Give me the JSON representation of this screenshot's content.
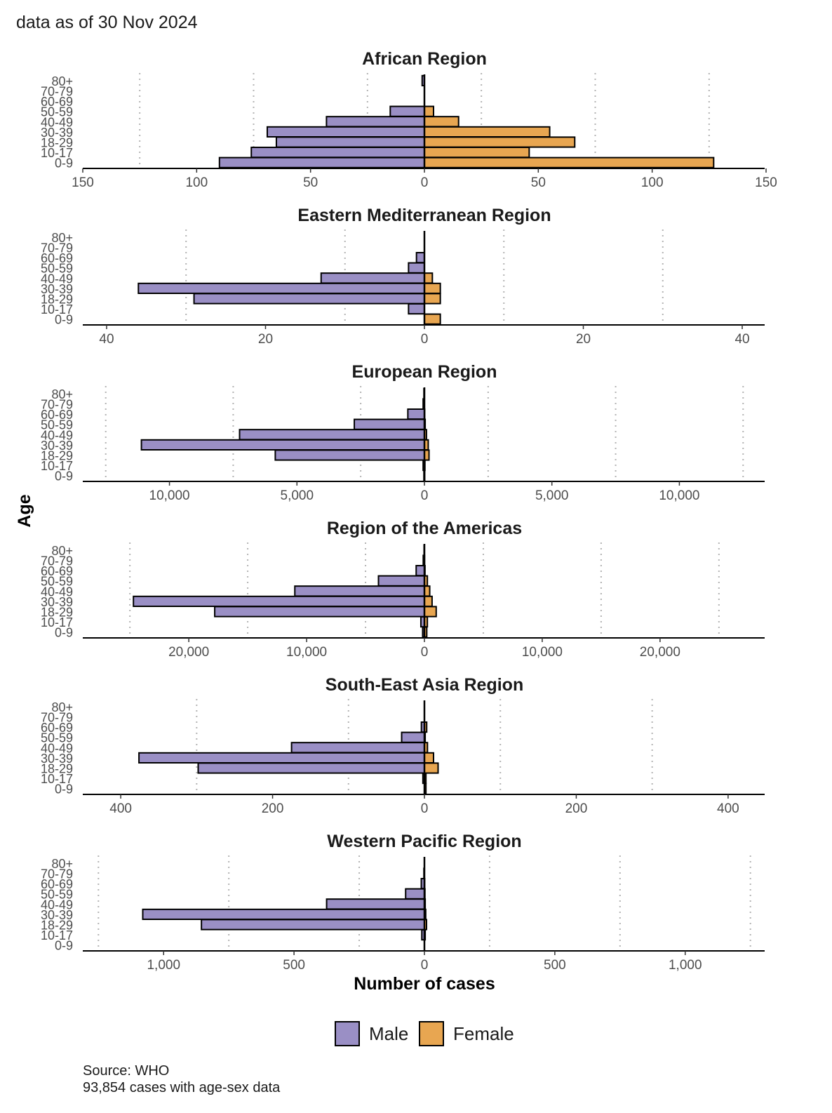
{
  "header": {
    "note": "data as of 30 Nov 2024"
  },
  "footer": {
    "source": "Source: WHO",
    "cases_note": "93,854 cases with age-sex data"
  },
  "colors": {
    "male": "#9a8fc5",
    "female": "#e8a651",
    "grid": "#b3b3b3",
    "axis": "#000000"
  },
  "chart_data": {
    "type": "bar",
    "orientation": "horizontal-population-pyramid",
    "xlabel": "Number of cases",
    "ylabel": "Age",
    "age_groups": [
      "0-9",
      "10-17",
      "18-29",
      "30-39",
      "40-49",
      "50-59",
      "60-69",
      "70-79",
      "80+"
    ],
    "legend": [
      {
        "key": "male",
        "label": "Male"
      },
      {
        "key": "female",
        "label": "Female"
      }
    ],
    "panels": [
      {
        "title": "African Region",
        "xlim": [
          -150,
          150
        ],
        "ticks": [
          -150,
          -100,
          -50,
          0,
          50,
          100,
          150
        ],
        "tick_labels": [
          "150",
          "100",
          "50",
          "0",
          "50",
          "100",
          "150"
        ],
        "grid": [
          -125,
          -75,
          -25,
          25,
          75,
          125
        ],
        "male": [
          90,
          76,
          65,
          69,
          43,
          15,
          0,
          0,
          1
        ],
        "female": [
          127,
          46,
          66,
          55,
          15,
          4,
          0,
          0,
          0
        ]
      },
      {
        "title": "Eastern Mediterranean Region",
        "xlim": [
          -43,
          43
        ],
        "ticks": [
          -40,
          -20,
          0,
          20,
          40
        ],
        "tick_labels": [
          "40",
          "20",
          "0",
          "20",
          "40"
        ],
        "grid": [
          -30,
          -10,
          10,
          30
        ],
        "male": [
          0,
          2,
          29,
          36,
          13,
          2,
          1,
          0,
          0
        ],
        "female": [
          2,
          0,
          2,
          2,
          1,
          0,
          0,
          0,
          0
        ]
      },
      {
        "title": "European Region",
        "xlim": [
          -13400,
          13400
        ],
        "ticks": [
          -10000,
          -5000,
          0,
          5000,
          10000
        ],
        "tick_labels": [
          "10,000",
          "5,000",
          "0",
          "5,000",
          "10,000"
        ],
        "grid": [
          -12500,
          -7500,
          -2500,
          2500,
          7500,
          12500
        ],
        "male": [
          20,
          50,
          5850,
          11100,
          7250,
          2750,
          650,
          50,
          20
        ],
        "female": [
          10,
          20,
          180,
          150,
          80,
          30,
          10,
          0,
          0
        ]
      },
      {
        "title": "Region of the Americas",
        "xlim": [
          -29000,
          29000
        ],
        "ticks": [
          -20000,
          -10000,
          0,
          10000,
          20000
        ],
        "tick_labels": [
          "20,000",
          "10,000",
          "0",
          "10,000",
          "20,000"
        ],
        "grid": [
          -25000,
          -15000,
          -5000,
          5000,
          15000,
          25000
        ],
        "male": [
          150,
          300,
          17800,
          24700,
          11000,
          3900,
          700,
          100,
          30
        ],
        "female": [
          200,
          250,
          1000,
          650,
          450,
          250,
          50,
          10,
          0
        ]
      },
      {
        "title": "South-East Asia Region",
        "xlim": [
          -450,
          450
        ],
        "ticks": [
          -400,
          -200,
          0,
          200,
          400
        ],
        "tick_labels": [
          "400",
          "200",
          "0",
          "200",
          "400"
        ],
        "grid": [
          -300,
          -100,
          100,
          300
        ],
        "male": [
          0,
          2,
          298,
          376,
          175,
          30,
          4,
          0,
          0
        ],
        "female": [
          2,
          2,
          18,
          12,
          4,
          1,
          3,
          0,
          0
        ]
      },
      {
        "title": "Western Pacific Region",
        "xlim": [
          -1310,
          1310
        ],
        "ticks": [
          -1000,
          -500,
          0,
          500,
          1000
        ],
        "tick_labels": [
          "1,000",
          "500",
          "0",
          "500",
          "1,000"
        ],
        "grid": [
          -1250,
          -750,
          -250,
          250,
          750,
          1250
        ],
        "male": [
          0,
          10,
          855,
          1080,
          375,
          72,
          12,
          2,
          0
        ],
        "female": [
          0,
          3,
          8,
          5,
          3,
          2,
          1,
          0,
          0
        ]
      }
    ]
  }
}
